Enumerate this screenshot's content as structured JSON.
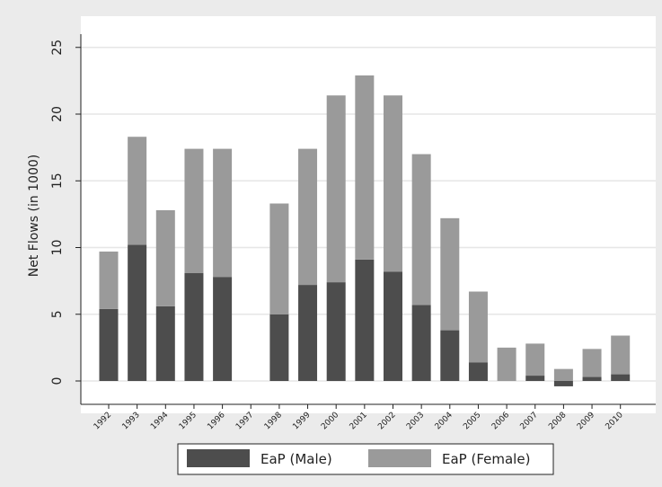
{
  "chart_data": {
    "type": "bar",
    "stacked": true,
    "title": "",
    "xlabel": "",
    "ylabel": "Net Flows (in 1000)",
    "ylim": [
      -1.5,
      26
    ],
    "yticks": [
      0,
      5,
      10,
      15,
      20,
      25
    ],
    "grid": true,
    "legend_position": "bottom",
    "categories": [
      "1992",
      "1993",
      "1994",
      "1995",
      "1996",
      "1997",
      "1998",
      "1999",
      "2000",
      "2001",
      "2002",
      "2003",
      "2004",
      "2005",
      "2006",
      "2007",
      "2008",
      "2009",
      "2010"
    ],
    "series": [
      {
        "name": "EaP (Male)",
        "color": "#4d4d4d",
        "values": [
          5.4,
          10.2,
          5.6,
          8.1,
          7.8,
          null,
          5.0,
          7.2,
          7.4,
          9.1,
          8.2,
          5.7,
          3.8,
          1.4,
          0.0,
          0.4,
          -0.4,
          0.3,
          0.5
        ]
      },
      {
        "name": "EaP (Female)",
        "color": "#9a9a9a",
        "values": [
          4.3,
          8.1,
          7.2,
          9.3,
          9.6,
          null,
          8.3,
          10.2,
          14.0,
          13.8,
          13.2,
          11.3,
          8.4,
          5.3,
          2.5,
          2.4,
          0.9,
          2.1,
          2.9
        ]
      }
    ]
  }
}
